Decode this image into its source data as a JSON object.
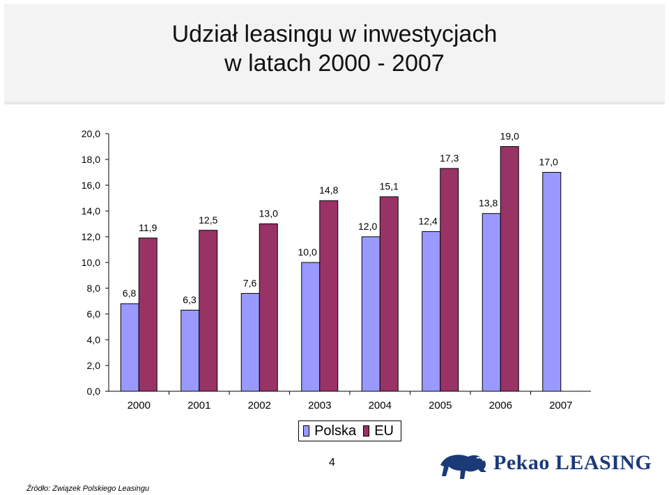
{
  "header": {
    "title_line1": "Udział leasingu w inwestycjach",
    "title_line2": "w latach 2000 - 2007"
  },
  "chart_data": {
    "type": "bar",
    "categories": [
      "2000",
      "2001",
      "2002",
      "2003",
      "2004",
      "2005",
      "2006",
      "2007"
    ],
    "series": [
      {
        "name": "Polska",
        "color": "#9999ff",
        "values": [
          6.8,
          6.3,
          7.6,
          10.0,
          12.0,
          12.4,
          13.8,
          17.0
        ]
      },
      {
        "name": "EU",
        "color": "#993366",
        "values": [
          11.9,
          12.5,
          13.0,
          14.8,
          15.1,
          17.3,
          19.0,
          null
        ]
      }
    ],
    "value_labels": {
      "Polska": [
        "6,8",
        "6,3",
        "7,6",
        "10,0",
        "12,0",
        "12,4",
        "13,8",
        "17,0"
      ],
      "EU": [
        "11,9",
        "12,5",
        "13,0",
        "14,8",
        "15,1",
        "17,3",
        "19,0",
        ""
      ]
    },
    "ylim": [
      0,
      20
    ],
    "y_ticks": [
      "0,0",
      "2,0",
      "4,0",
      "6,0",
      "8,0",
      "10,0",
      "12,0",
      "14,0",
      "16,0",
      "18,0",
      "20,0"
    ],
    "grid": false,
    "legend_position": "bottom-center"
  },
  "legend": {
    "polska_label": "Polska",
    "eu_label": "EU"
  },
  "footer": {
    "page_number": "4",
    "source": "Źródło: Związek Polskiego Leasingu",
    "logo_text": "Pekao LEASING"
  },
  "colors": {
    "brand": "#1b3a78",
    "polska": "#9999ff",
    "eu": "#993366"
  },
  "icons": {
    "logo": "bison-icon"
  }
}
